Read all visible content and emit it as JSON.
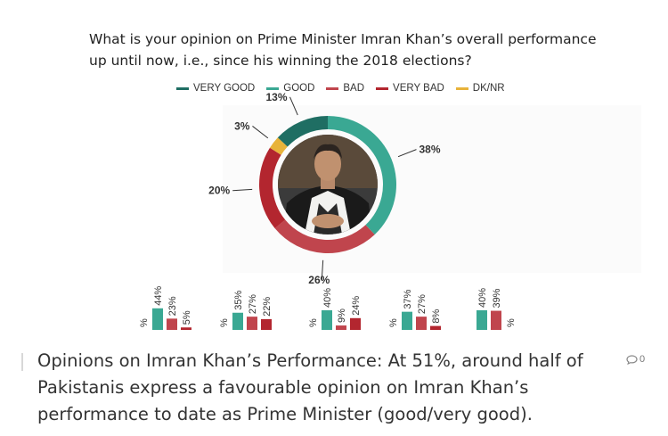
{
  "figure": {
    "question_line1": "What is your opinion on Prime Minister Imran Khan’s overall performance",
    "question_line2": "up until now, i.e., since his winning the 2018 elections?",
    "legend": [
      {
        "label": "VERY GOOD",
        "color": "#1f6e63"
      },
      {
        "label": "GOOD",
        "color": "#3aa893"
      },
      {
        "label": "BAD",
        "color": "#c0454d"
      },
      {
        "label": "VERY BAD",
        "color": "#b3262f"
      },
      {
        "label": "DK/NR",
        "color": "#e8b33a"
      }
    ],
    "photo_icon": "portrait-photo"
  },
  "chart_data": [
    {
      "type": "pie",
      "series": [
        {
          "name": "GOOD",
          "value": 38,
          "label": "38%"
        },
        {
          "name": "BAD",
          "value": 26,
          "label": "26%"
        },
        {
          "name": "VERY BAD",
          "value": 20,
          "label": "20%"
        },
        {
          "name": "DK/NR",
          "value": 3,
          "label": "3%"
        },
        {
          "name": "VERY GOOD",
          "value": 13,
          "label": "13%"
        }
      ]
    },
    {
      "type": "bar",
      "groups": [
        {
          "bars": [
            {
              "label": "%",
              "value": 0,
              "color": "#3aa893"
            },
            {
              "label": "44%",
              "value": 44,
              "color": "#3aa893"
            },
            {
              "label": "23%",
              "value": 23,
              "color": "#c0454d"
            },
            {
              "label": "5%",
              "value": 5,
              "color": "#b3262f"
            }
          ]
        },
        {
          "bars": [
            {
              "label": "%",
              "value": 0,
              "color": "#3aa893"
            },
            {
              "label": "35%",
              "value": 35,
              "color": "#3aa893"
            },
            {
              "label": "27%",
              "value": 27,
              "color": "#c0454d"
            },
            {
              "label": "22%",
              "value": 22,
              "color": "#b3262f"
            }
          ]
        },
        {
          "bars": [
            {
              "label": "%",
              "value": 0,
              "color": "#3aa893"
            },
            {
              "label": "40%",
              "value": 40,
              "color": "#3aa893"
            },
            {
              "label": "9%",
              "value": 9,
              "color": "#c0454d"
            },
            {
              "label": "24%",
              "value": 24,
              "color": "#b3262f"
            }
          ]
        },
        {
          "bars": [
            {
              "label": "%",
              "value": 0,
              "color": "#3aa893"
            },
            {
              "label": "37%",
              "value": 37,
              "color": "#3aa893"
            },
            {
              "label": "27%",
              "value": 27,
              "color": "#c0454d"
            },
            {
              "label": "8%",
              "value": 8,
              "color": "#b3262f"
            }
          ]
        },
        {
          "bars": [
            {
              "label": "40%",
              "value": 40,
              "color": "#3aa893"
            },
            {
              "label": "39%",
              "value": 39,
              "color": "#c0454d"
            },
            {
              "label": "%",
              "value": 0,
              "color": "#b3262f"
            }
          ]
        }
      ]
    }
  ],
  "caption": {
    "text": "Opinions on Imran Khan’s Performance: At 51%, around half of Pakistanis express a favourable opinion on Imran Khan’s performance to date as Prime Minister (good/very good)."
  },
  "comments": {
    "icon": "comment-icon",
    "count": "0"
  }
}
